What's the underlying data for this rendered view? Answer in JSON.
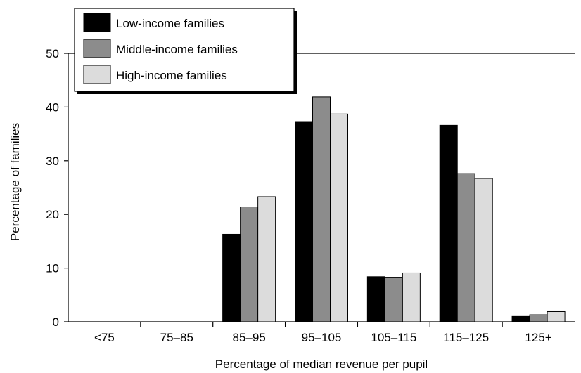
{
  "chart_data": {
    "type": "bar",
    "xlabel": "Percentage of median revenue per pupil",
    "ylabel": "Percentage of families",
    "ylim": [
      0,
      50
    ],
    "yticks": [
      "0",
      "10",
      "20",
      "30",
      "40",
      "50"
    ],
    "categories": [
      "<75",
      "75–85",
      "85–95",
      "95–105",
      "105–115",
      "115–125",
      "125+"
    ],
    "series": [
      {
        "name": "Low-income families",
        "color": "#000000",
        "values": [
          0,
          0,
          16.3,
          37.3,
          8.4,
          36.6,
          1.0
        ]
      },
      {
        "name": "Middle-income families",
        "color": "#8c8c8c",
        "values": [
          0,
          0,
          21.4,
          41.9,
          8.2,
          27.6,
          1.3
        ]
      },
      {
        "name": "High-income families",
        "color": "#dcdcdc",
        "values": [
          0,
          0,
          23.3,
          38.7,
          9.1,
          26.7,
          1.9
        ]
      }
    ],
    "grid": false,
    "legend_position": "top-left"
  }
}
